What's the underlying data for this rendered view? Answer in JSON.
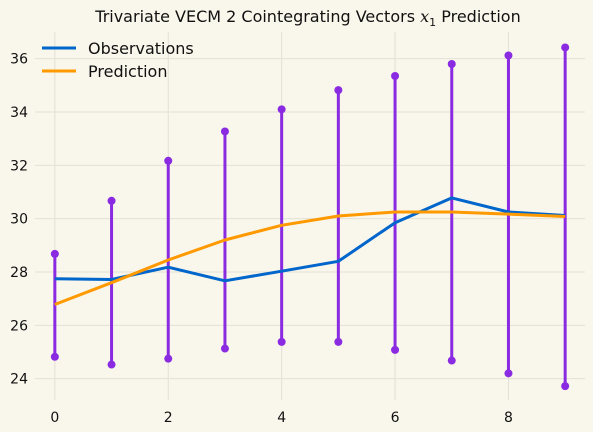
{
  "chart_data": {
    "type": "line",
    "title_prefix": "Trivariate VECM 2 Cointegrating Vectors ",
    "title_var": "x",
    "title_sub": "1",
    "title_suffix": " Prediction",
    "x": [
      0,
      1,
      2,
      3,
      4,
      5,
      6,
      7,
      8,
      9
    ],
    "xlim": [
      -0.35,
      9.35
    ],
    "ylim": [
      23.2,
      37.0
    ],
    "xticks": [
      0,
      2,
      4,
      6,
      8
    ],
    "yticks": [
      24,
      26,
      28,
      30,
      32,
      34,
      36
    ],
    "grid": true,
    "legend_position": "top-left",
    "series": [
      {
        "name": "Observations",
        "color": "#0066cc",
        "values": [
          27.75,
          27.72,
          28.18,
          27.67,
          28.03,
          28.4,
          29.85,
          30.78,
          30.25,
          30.12
        ]
      },
      {
        "name": "Prediction",
        "color": "#ff9900",
        "values": [
          26.78,
          27.6,
          28.45,
          29.2,
          29.75,
          30.1,
          30.25,
          30.25,
          30.17,
          30.08
        ]
      }
    ],
    "intervals": {
      "color": "#8a2be2",
      "lower": [
        24.82,
        24.53,
        24.75,
        25.13,
        25.38,
        25.38,
        25.08,
        24.68,
        24.2,
        23.72
      ],
      "upper": [
        28.68,
        30.67,
        32.17,
        33.27,
        34.1,
        34.82,
        35.35,
        35.8,
        36.12,
        36.42
      ]
    }
  }
}
